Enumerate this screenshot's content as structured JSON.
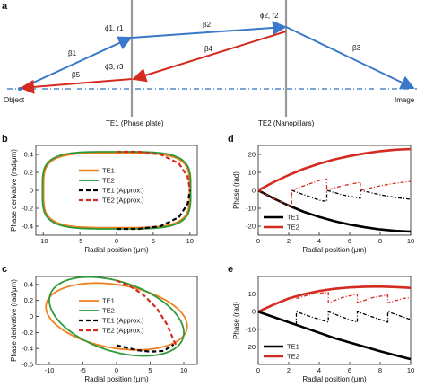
{
  "figure": {
    "panel_labels": [
      "a",
      "b",
      "c",
      "d",
      "e"
    ],
    "panel_a": {
      "object_label": "Object",
      "image_label": "Image",
      "te1_label": "TE1 (Phase plate)",
      "te2_label": "TE2 (Nanopillars)",
      "ray_labels": [
        "β1",
        "β2",
        "β3",
        "β4",
        "β5"
      ],
      "phi1_label": "ϕ1, r1",
      "phi2_label": "ϕ2, r2",
      "phi3_label": "ϕ3, r3",
      "colors": {
        "forward": "#3a78c9",
        "backward": "#d42a20",
        "axis": "#2d6fbf",
        "element": "#999999"
      }
    }
  },
  "chart_data": [
    {
      "panel": "b",
      "type": "line",
      "xlabel": "Radial position (μm)",
      "ylabel": "Phase derivative (rad/μm)",
      "xlim": [
        -11,
        11
      ],
      "ylim": [
        -0.5,
        0.5
      ],
      "xticks": [
        -10,
        -5,
        0,
        5,
        10
      ],
      "yticks": [
        -0.4,
        -0.2,
        0,
        0.2,
        0.4
      ],
      "series": [
        {
          "name": "TE1",
          "color": "#f07f1e",
          "style": "solid-thick",
          "shape": "superellipse",
          "cx": 0,
          "cy": 0,
          "rx": 10,
          "ry": 0.42,
          "tilt": 0
        },
        {
          "name": "TE2",
          "color": "#2e9a3a",
          "style": "solid",
          "shape": "superellipse",
          "cx": 0,
          "cy": 0,
          "rx": 10.1,
          "ry": 0.43,
          "tilt": 0
        },
        {
          "name": "TE1 (Approx.)",
          "color": "#000000",
          "style": "dashed",
          "points": [
            [
              0,
              -0.43
            ],
            [
              3,
              -0.43
            ],
            [
              6,
              -0.4
            ],
            [
              8.5,
              -0.3
            ],
            [
              9.7,
              -0.15
            ],
            [
              10,
              0
            ]
          ]
        },
        {
          "name": "TE2 (Approx.)",
          "color": "#d42a20",
          "style": "dashed",
          "points": [
            [
              0,
              0.43
            ],
            [
              3,
              0.43
            ],
            [
              6,
              0.4
            ],
            [
              8.5,
              0.3
            ],
            [
              9.7,
              0.15
            ],
            [
              10,
              0
            ]
          ]
        }
      ],
      "legend": "center"
    },
    {
      "panel": "c",
      "type": "line",
      "xlabel": "Radial position (μm)",
      "ylabel": "Phase derivative (rad/μm)",
      "xlim": [
        -12,
        12
      ],
      "ylim": [
        -0.6,
        0.5
      ],
      "xticks": [
        -10,
        -5,
        0,
        5,
        10
      ],
      "yticks": [
        -0.6,
        -0.4,
        -0.2,
        0,
        0.2,
        0.4
      ],
      "series": [
        {
          "name": "TE1",
          "color": "#f07f1e",
          "style": "solid",
          "shape": "tilted-ellipse",
          "cx": 0,
          "cy": 0,
          "rx": 10.5,
          "ry": 0.4,
          "tilt": -0.3
        },
        {
          "name": "TE2",
          "color": "#2e9a3a",
          "style": "solid",
          "shape": "tilted-ellipse",
          "cx": 0,
          "cy": 0,
          "rx": 10,
          "ry": 0.45,
          "tilt": -0.45
        },
        {
          "name": "TE1 (Approx.)",
          "color": "#000000",
          "style": "dashed",
          "points": [
            [
              0,
              -0.36
            ],
            [
              3,
              -0.42
            ],
            [
              5,
              -0.44
            ],
            [
              7,
              -0.43
            ],
            [
              8.5,
              -0.35
            ]
          ]
        },
        {
          "name": "TE2 (Approx.)",
          "color": "#d42a20",
          "style": "dashed",
          "points": [
            [
              0,
              0.45
            ],
            [
              2,
              0.38
            ],
            [
              4,
              0.27
            ],
            [
              6,
              0.1
            ],
            [
              7.5,
              -0.1
            ],
            [
              8.5,
              -0.3
            ],
            [
              9,
              -0.38
            ]
          ]
        }
      ],
      "legend": "center"
    },
    {
      "panel": "d",
      "type": "line",
      "xlabel": "Radial position (μm)",
      "ylabel": "Phase (rad)",
      "xlim": [
        0,
        10
      ],
      "ylim": [
        -25,
        25
      ],
      "xticks": [
        0,
        2,
        4,
        6,
        8,
        10
      ],
      "yticks": [
        -20,
        -10,
        0,
        10,
        20
      ],
      "series": [
        {
          "name": "TE1",
          "color": "#000000",
          "style": "solid-thick",
          "points": [
            [
              0,
              0
            ],
            [
              1,
              -4.5
            ],
            [
              2,
              -8.5
            ],
            [
              3,
              -12
            ],
            [
              4,
              -14.8
            ],
            [
              5,
              -17.2
            ],
            [
              6,
              -19.1
            ],
            [
              7,
              -20.6
            ],
            [
              8,
              -21.8
            ],
            [
              9,
              -22.6
            ],
            [
              10,
              -23
            ]
          ]
        },
        {
          "name": "TE2",
          "color": "#d42a20",
          "style": "solid-thick",
          "points": [
            [
              0,
              0
            ],
            [
              1,
              4.5
            ],
            [
              2,
              8.5
            ],
            [
              3,
              12
            ],
            [
              4,
              14.8
            ],
            [
              5,
              17.2
            ],
            [
              6,
              19.1
            ],
            [
              7,
              20.6
            ],
            [
              8,
              21.8
            ],
            [
              9,
              22.6
            ],
            [
              10,
              23
            ]
          ]
        },
        {
          "name": "",
          "color": "#000000",
          "style": "dashdot",
          "points": [
            [
              2.2,
              0
            ],
            [
              3,
              -2.5
            ],
            [
              4,
              -5.5
            ],
            [
              4.5,
              -6.2
            ],
            [
              4.5,
              0
            ],
            [
              5.5,
              -2.5
            ],
            [
              6.7,
              -4.5
            ],
            [
              6.7,
              0
            ],
            [
              8,
              -2.5
            ],
            [
              9,
              -4
            ],
            [
              10,
              -5
            ]
          ]
        },
        {
          "name": "",
          "color": "#d42a20",
          "style": "dashdot",
          "points": [
            [
              0,
              0
            ],
            [
              1,
              -4.5
            ],
            [
              2,
              -8.5
            ],
            [
              2.2,
              -9.3
            ],
            [
              2.2,
              0
            ],
            [
              3,
              2.5
            ],
            [
              4,
              5.5
            ],
            [
              4.5,
              6.2
            ],
            [
              4.5,
              0
            ],
            [
              5.5,
              2.5
            ],
            [
              6.7,
              4.5
            ],
            [
              6.7,
              0
            ],
            [
              8,
              2.5
            ],
            [
              9,
              4
            ],
            [
              10,
              5
            ]
          ]
        }
      ],
      "legend": "lower-left"
    },
    {
      "panel": "e",
      "type": "line",
      "xlabel": "Radial position (μm)",
      "ylabel": "Phase (rad)",
      "xlim": [
        0,
        10
      ],
      "ylim": [
        -30,
        20
      ],
      "xticks": [
        0,
        2,
        4,
        6,
        8,
        10
      ],
      "yticks": [
        -20,
        -10,
        0,
        10
      ],
      "series": [
        {
          "name": "TE1",
          "color": "#000000",
          "style": "solid-thick",
          "points": [
            [
              0,
              0
            ],
            [
              1,
              -3
            ],
            [
              2,
              -6
            ],
            [
              3,
              -9
            ],
            [
              4,
              -12
            ],
            [
              5,
              -15
            ],
            [
              6,
              -17.5
            ],
            [
              7,
              -20
            ],
            [
              8,
              -22.5
            ],
            [
              9,
              -24.8
            ],
            [
              10,
              -27
            ]
          ]
        },
        {
          "name": "TE2",
          "color": "#d42a20",
          "style": "solid-thick",
          "points": [
            [
              0,
              0
            ],
            [
              1,
              4
            ],
            [
              2,
              7.5
            ],
            [
              3,
              10
            ],
            [
              4,
              11.8
            ],
            [
              5,
              13
            ],
            [
              6,
              13.8
            ],
            [
              7,
              14.2
            ],
            [
              8,
              14.3
            ],
            [
              9,
              14
            ],
            [
              10,
              13.5
            ]
          ]
        },
        {
          "name": "",
          "color": "#000000",
          "style": "dashdot",
          "points": [
            [
              0,
              0
            ],
            [
              1,
              -3
            ],
            [
              2,
              -6
            ],
            [
              2.5,
              -7.5
            ],
            [
              2.5,
              0
            ],
            [
              3.5,
              -3
            ],
            [
              4.6,
              -6
            ],
            [
              4.6,
              0
            ],
            [
              5.5,
              -3
            ],
            [
              6.5,
              -6
            ],
            [
              6.5,
              0
            ],
            [
              7.5,
              -3
            ],
            [
              8.5,
              -6
            ],
            [
              8.5,
              0
            ],
            [
              9.5,
              -3
            ],
            [
              10,
              -4.5
            ]
          ]
        },
        {
          "name": "",
          "color": "#d42a20",
          "style": "dashdot",
          "points": [
            [
              2.5,
              7.5
            ],
            [
              3.5,
              10
            ],
            [
              4.6,
              11
            ],
            [
              4.6,
              5
            ],
            [
              5.5,
              8
            ],
            [
              6.5,
              10
            ],
            [
              6.5,
              5
            ],
            [
              7.5,
              8
            ],
            [
              8.5,
              9.5
            ],
            [
              8.5,
              5
            ],
            [
              9.5,
              7.5
            ],
            [
              10,
              8
            ]
          ]
        }
      ],
      "legend": "lower-left"
    }
  ]
}
